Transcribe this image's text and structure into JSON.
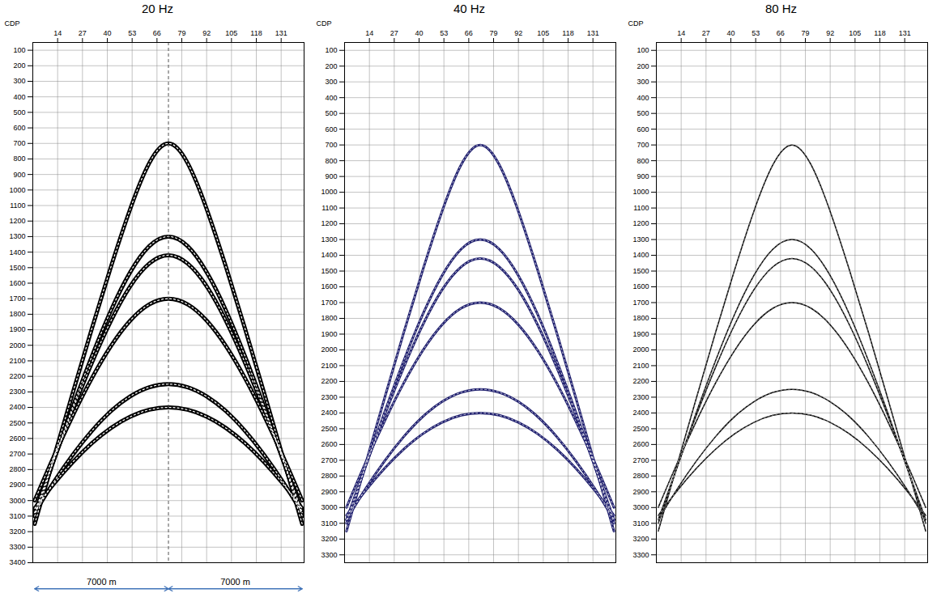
{
  "chart_data": [
    {
      "type": "line",
      "title": "20 Hz",
      "x_label": "CDP",
      "color": "#000000",
      "grid": true,
      "xlim": [
        1,
        143
      ],
      "xticks": [
        14,
        27,
        40,
        53,
        66,
        79,
        92,
        105,
        118,
        131
      ],
      "ylim": [
        50,
        3400
      ],
      "yticks": [
        100,
        200,
        300,
        400,
        500,
        600,
        700,
        800,
        900,
        1000,
        1100,
        1200,
        1300,
        1400,
        1500,
        1600,
        1700,
        1800,
        1900,
        2000,
        2100,
        2200,
        2300,
        2400,
        2500,
        2600,
        2700,
        2800,
        2900,
        3000,
        3100,
        3200,
        3300,
        3400
      ],
      "x": [
        2,
        12,
        22,
        32,
        42,
        52,
        62,
        72,
        82,
        92,
        102,
        112,
        122,
        132,
        142
      ],
      "series": [
        {
          "values": [
            3150,
            2724,
            2303,
            1889,
            1491,
            1122,
            826,
            700,
            826,
            1122,
            1491,
            1889,
            2303,
            2724,
            3150
          ]
        },
        {
          "values": [
            3100,
            2740,
            2394,
            2068,
            1773,
            1529,
            1361,
            1300,
            1361,
            1529,
            1773,
            2068,
            2394,
            2740,
            3100
          ]
        },
        {
          "values": [
            3077,
            2737,
            2412,
            2110,
            1840,
            1620,
            1473,
            1420,
            1473,
            1620,
            1840,
            2110,
            2412,
            2737,
            3077
          ]
        },
        {
          "values": [
            2999,
            2716,
            2451,
            2210,
            2003,
            1841,
            1736,
            1700,
            1736,
            1841,
            2003,
            2210,
            2451,
            2716,
            2999
          ]
        },
        {
          "values": [
            3078,
            2881,
            2704,
            2550,
            2423,
            2329,
            2270,
            2250,
            2270,
            2329,
            2423,
            2550,
            2704,
            2881,
            3078
          ]
        },
        {
          "values": [
            3050,
            2892,
            2751,
            2630,
            2532,
            2460,
            2415,
            2400,
            2415,
            2460,
            2532,
            2630,
            2751,
            2892,
            3050
          ]
        }
      ],
      "annotations": [
        {
          "text": "7000 m",
          "x": [
            2,
            72
          ]
        },
        {
          "text": "7000 m",
          "x": [
            72,
            142
          ]
        },
        {
          "x": 72,
          "line_style": "dashed"
        }
      ]
    },
    {
      "type": "line",
      "title": "40 Hz",
      "x_label": "CDP",
      "color": "#1f1f6e",
      "grid": true,
      "xlim": [
        1,
        143
      ],
      "xticks": [
        14,
        27,
        40,
        53,
        66,
        79,
        92,
        105,
        118,
        131
      ],
      "ylim": [
        50,
        3350
      ],
      "yticks": [
        100,
        200,
        300,
        400,
        500,
        600,
        700,
        800,
        900,
        1000,
        1100,
        1200,
        1300,
        1400,
        1500,
        1600,
        1700,
        1800,
        1900,
        2000,
        2100,
        2200,
        2300,
        2400,
        2500,
        2600,
        2700,
        2800,
        2900,
        3000,
        3100,
        3200,
        3300
      ],
      "x": [
        2,
        12,
        22,
        32,
        42,
        52,
        62,
        72,
        82,
        92,
        102,
        112,
        122,
        132,
        142
      ],
      "series": [
        {
          "values": [
            3150,
            2724,
            2303,
            1889,
            1491,
            1122,
            826,
            700,
            826,
            1122,
            1491,
            1889,
            2303,
            2724,
            3150
          ]
        },
        {
          "values": [
            3100,
            2740,
            2394,
            2068,
            1773,
            1529,
            1361,
            1300,
            1361,
            1529,
            1773,
            2068,
            2394,
            2740,
            3100
          ]
        },
        {
          "values": [
            3077,
            2737,
            2412,
            2110,
            1840,
            1620,
            1473,
            1420,
            1473,
            1620,
            1840,
            2110,
            2412,
            2737,
            3077
          ]
        },
        {
          "values": [
            2999,
            2716,
            2451,
            2210,
            2003,
            1841,
            1736,
            1700,
            1736,
            1841,
            2003,
            2210,
            2451,
            2716,
            2999
          ]
        },
        {
          "values": [
            3078,
            2881,
            2704,
            2550,
            2423,
            2329,
            2270,
            2250,
            2270,
            2329,
            2423,
            2550,
            2704,
            2881,
            3078
          ]
        },
        {
          "values": [
            3050,
            2892,
            2751,
            2630,
            2532,
            2460,
            2415,
            2400,
            2415,
            2460,
            2532,
            2630,
            2751,
            2892,
            3050
          ]
        }
      ]
    },
    {
      "type": "line",
      "title": "80 Hz",
      "x_label": "CDP",
      "color": "#000000",
      "grid": true,
      "xlim": [
        1,
        143
      ],
      "xticks": [
        14,
        27,
        40,
        53,
        66,
        79,
        92,
        105,
        118,
        131
      ],
      "ylim": [
        50,
        3350
      ],
      "yticks": [
        100,
        200,
        300,
        400,
        500,
        600,
        700,
        800,
        900,
        1000,
        1100,
        1200,
        1300,
        1400,
        1500,
        1600,
        1700,
        1800,
        1900,
        2000,
        2100,
        2200,
        2300,
        2400,
        2500,
        2600,
        2700,
        2800,
        2900,
        3000,
        3100,
        3200,
        3300
      ],
      "x": [
        2,
        12,
        22,
        32,
        42,
        52,
        62,
        72,
        82,
        92,
        102,
        112,
        122,
        132,
        142
      ],
      "series": [
        {
          "values": [
            3150,
            2724,
            2303,
            1889,
            1491,
            1122,
            826,
            700,
            826,
            1122,
            1491,
            1889,
            2303,
            2724,
            3150
          ]
        },
        {
          "values": [
            3100,
            2740,
            2394,
            2068,
            1773,
            1529,
            1361,
            1300,
            1361,
            1529,
            1773,
            2068,
            2394,
            2740,
            3100
          ]
        },
        {
          "values": [
            3077,
            2737,
            2412,
            2110,
            1840,
            1620,
            1473,
            1420,
            1473,
            1620,
            1840,
            2110,
            2412,
            2737,
            3077
          ]
        },
        {
          "values": [
            2999,
            2716,
            2451,
            2210,
            2003,
            1841,
            1736,
            1700,
            1736,
            1841,
            2003,
            2210,
            2451,
            2716,
            2999
          ]
        },
        {
          "values": [
            3078,
            2881,
            2704,
            2550,
            2423,
            2329,
            2270,
            2250,
            2270,
            2329,
            2423,
            2550,
            2704,
            2881,
            3078
          ]
        },
        {
          "values": [
            3050,
            2892,
            2751,
            2630,
            2532,
            2460,
            2415,
            2400,
            2415,
            2460,
            2532,
            2630,
            2751,
            2892,
            3050
          ]
        }
      ]
    }
  ]
}
